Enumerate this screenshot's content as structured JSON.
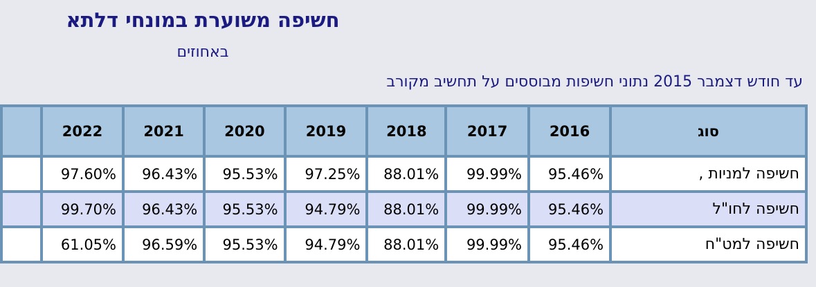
{
  "header": {
    "title": "חשיפה משוערת במונחי דלתא",
    "subtitle": "באחוזים",
    "note": "עד חודש דצמבר 2015 נתוני חשיפות מבוססים על תחשיב מקורב"
  },
  "table": {
    "type_column_header": "סוג",
    "years": [
      "2022",
      "2021",
      "2020",
      "2019",
      "2018",
      "2017",
      "2016"
    ],
    "rows": [
      {
        "type": "חשיפה למניות ,",
        "values": [
          "97.60%",
          "96.43%",
          "95.53%",
          "97.25%",
          "88.01%",
          "99.99%",
          "95.46%"
        ]
      },
      {
        "type": "חשיפה לחו\"ל",
        "values": [
          "99.70%",
          "96.43%",
          "95.53%",
          "94.79%",
          "88.01%",
          "99.99%",
          "95.46%"
        ]
      },
      {
        "type": "חשיפה למט\"ח",
        "values": [
          "61.05%",
          "96.59%",
          "95.53%",
          "94.79%",
          "88.01%",
          "99.99%",
          "95.46%"
        ]
      }
    ]
  },
  "colors": {
    "page_background": "#e8e9ee",
    "heading_text": "#1a1a80",
    "table_border": "#6b93b5",
    "header_row_bg": "#a9c7e0",
    "zebra_row_bg": "#dadef6",
    "data_row_bg": "#ffffff",
    "cell_text": "#000000"
  }
}
